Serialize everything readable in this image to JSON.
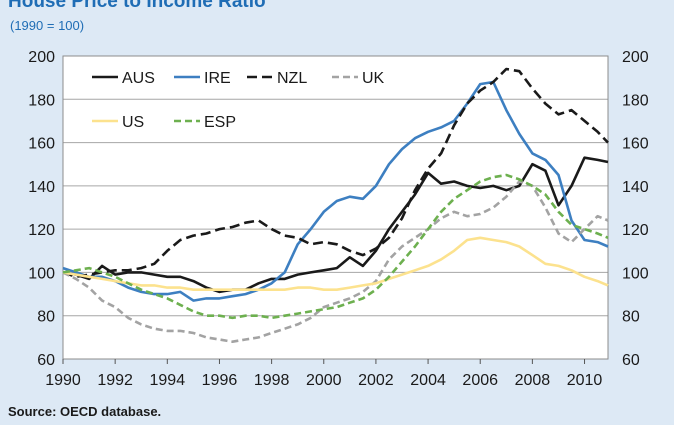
{
  "header": {
    "title": "House Price to Income Ratio",
    "subtitle": "(1990 = 100)"
  },
  "footer": {
    "source": "Source: OECD database."
  },
  "chart_data": {
    "type": "line",
    "title": "House Price to Income Ratio",
    "subtitle": "(1990 = 100)",
    "xlabel": "",
    "ylabel": "",
    "xlim": [
      1990,
      2010.9
    ],
    "ylim": [
      60,
      200
    ],
    "xticks": [
      1990,
      1992,
      1994,
      1996,
      1998,
      2000,
      2002,
      2004,
      2006,
      2008,
      2010
    ],
    "yticks": [
      60,
      80,
      100,
      120,
      140,
      160,
      180,
      200
    ],
    "grid": true,
    "legend_position": "top-left",
    "series": [
      {
        "name": "AUS",
        "color": "#1a1a1a",
        "dash": "solid",
        "x": [
          1990,
          1990.5,
          1991,
          1991.5,
          1992,
          1992.5,
          1993,
          1993.5,
          1994,
          1994.5,
          1995,
          1995.5,
          1996,
          1996.5,
          1997,
          1997.5,
          1998,
          1998.5,
          1999,
          1999.5,
          2000,
          2000.5,
          2001,
          2001.5,
          2002,
          2002.5,
          2003,
          2003.5,
          2004,
          2004.5,
          2005,
          2005.5,
          2006,
          2006.5,
          2007,
          2007.5,
          2008,
          2008.5,
          2009,
          2009.5,
          2010,
          2010.5,
          2010.9
        ],
        "y": [
          100,
          99,
          97,
          103,
          99,
          100,
          100,
          99,
          98,
          98,
          96,
          93,
          91,
          92,
          92,
          95,
          97,
          97,
          99,
          100,
          101,
          102,
          107,
          103,
          110,
          120,
          128,
          136,
          146,
          141,
          142,
          140,
          139,
          140,
          138,
          140,
          150,
          147,
          131,
          140,
          153,
          152,
          151
        ]
      },
      {
        "name": "IRE",
        "color": "#3d7fc1",
        "dash": "solid",
        "x": [
          1990,
          1990.5,
          1991,
          1991.5,
          1992,
          1992.5,
          1993,
          1993.5,
          1994,
          1994.5,
          1995,
          1995.5,
          1996,
          1996.5,
          1997,
          1997.5,
          1998,
          1998.5,
          1999,
          1999.5,
          2000,
          2000.5,
          2001,
          2001.5,
          2002,
          2002.5,
          2003,
          2003.5,
          2004,
          2004.5,
          2005,
          2005.5,
          2006,
          2006.5,
          2007,
          2007.5,
          2008,
          2008.5,
          2009,
          2009.5,
          2010,
          2010.5,
          2010.9
        ],
        "y": [
          102,
          100,
          98,
          98,
          96,
          93,
          91,
          90,
          90,
          91,
          87,
          88,
          88,
          89,
          90,
          92,
          95,
          100,
          113,
          120,
          128,
          133,
          135,
          134,
          140,
          150,
          157,
          162,
          165,
          167,
          170,
          178,
          187,
          188,
          175,
          164,
          155,
          152,
          145,
          124,
          115,
          114,
          112
        ]
      },
      {
        "name": "NZL",
        "color": "#1a1a1a",
        "dash": "long-dash",
        "x": [
          1990,
          1990.5,
          1991,
          1991.5,
          1992,
          1992.5,
          1993,
          1993.5,
          1994,
          1994.5,
          1995,
          1995.5,
          1996,
          1996.5,
          1997,
          1997.5,
          1998,
          1998.5,
          1999,
          1999.5,
          2000,
          2000.5,
          2001,
          2001.5,
          2002,
          2002.5,
          2003,
          2003.5,
          2004,
          2004.5,
          2005,
          2005.5,
          2006,
          2006.5,
          2007,
          2007.5,
          2008,
          2008.5,
          2009,
          2009.5,
          2010,
          2010.5,
          2010.9
        ],
        "y": [
          100,
          98,
          99,
          100,
          101,
          101,
          102,
          104,
          110,
          115,
          117,
          118,
          120,
          121,
          123,
          124,
          120,
          117,
          116,
          113,
          114,
          113,
          110,
          108,
          111,
          116,
          125,
          138,
          148,
          155,
          168,
          178,
          184,
          188,
          194,
          193,
          185,
          178,
          173,
          175,
          170,
          165,
          160
        ]
      },
      {
        "name": "UK",
        "color": "#a3a3a3",
        "dash": "dash",
        "x": [
          1990,
          1990.5,
          1991,
          1991.5,
          1992,
          1992.5,
          1993,
          1993.5,
          1994,
          1994.5,
          1995,
          1995.5,
          1996,
          1996.5,
          1997,
          1997.5,
          1998,
          1998.5,
          1999,
          1999.5,
          2000,
          2000.5,
          2001,
          2001.5,
          2002,
          2002.5,
          2003,
          2003.5,
          2004,
          2004.5,
          2005,
          2005.5,
          2006,
          2006.5,
          2007,
          2007.5,
          2008,
          2008.5,
          2009,
          2009.5,
          2010,
          2010.5,
          2010.9
        ],
        "y": [
          100,
          97,
          93,
          87,
          84,
          79,
          76,
          74,
          73,
          73,
          72,
          70,
          69,
          68,
          69,
          70,
          72,
          74,
          76,
          79,
          84,
          86,
          88,
          91,
          96,
          106,
          112,
          116,
          120,
          125,
          128,
          126,
          127,
          130,
          135,
          142,
          140,
          130,
          118,
          114,
          120,
          126,
          124
        ]
      },
      {
        "name": "US",
        "color": "#fce28e",
        "dash": "solid",
        "x": [
          1990,
          1990.5,
          1991,
          1991.5,
          1992,
          1992.5,
          1993,
          1993.5,
          1994,
          1994.5,
          1995,
          1995.5,
          1996,
          1996.5,
          1997,
          1997.5,
          1998,
          1998.5,
          1999,
          1999.5,
          2000,
          2000.5,
          2001,
          2001.5,
          2002,
          2002.5,
          2003,
          2003.5,
          2004,
          2004.5,
          2005,
          2005.5,
          2006,
          2006.5,
          2007,
          2007.5,
          2008,
          2008.5,
          2009,
          2009.5,
          2010,
          2010.5,
          2010.9
        ],
        "y": [
          100,
          99,
          98,
          97,
          96,
          95,
          94,
          94,
          93,
          93,
          92,
          92,
          92,
          92,
          92,
          92,
          92,
          92,
          93,
          93,
          92,
          92,
          93,
          94,
          95,
          97,
          99,
          101,
          103,
          106,
          110,
          115,
          116,
          115,
          114,
          112,
          108,
          104,
          103,
          101,
          98,
          96,
          94
        ]
      },
      {
        "name": "ESP",
        "color": "#6db04f",
        "dash": "dash",
        "x": [
          1990,
          1990.5,
          1991,
          1991.5,
          1992,
          1992.5,
          1993,
          1993.5,
          1994,
          1994.5,
          1995,
          1995.5,
          1996,
          1996.5,
          1997,
          1997.5,
          1998,
          1998.5,
          1999,
          1999.5,
          2000,
          2000.5,
          2001,
          2001.5,
          2002,
          2002.5,
          2003,
          2003.5,
          2004,
          2004.5,
          2005,
          2005.5,
          2006,
          2006.5,
          2007,
          2007.5,
          2008,
          2008.5,
          2009,
          2009.5,
          2010,
          2010.5,
          2010.9
        ],
        "y": [
          100,
          101,
          102,
          100,
          98,
          95,
          92,
          90,
          88,
          85,
          82,
          80,
          80,
          79,
          80,
          80,
          79,
          80,
          81,
          82,
          83,
          84,
          86,
          88,
          92,
          98,
          105,
          112,
          120,
          128,
          134,
          138,
          142,
          144,
          145,
          143,
          140,
          136,
          128,
          122,
          120,
          118,
          116
        ]
      }
    ]
  }
}
